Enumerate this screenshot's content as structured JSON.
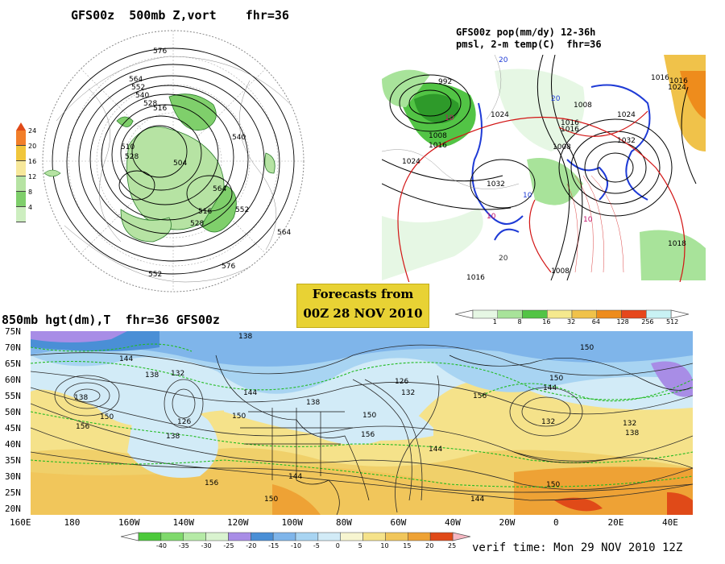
{
  "titles": {
    "vort": "GFS00z  500mb Z,vort    fhr=36",
    "pop_line1": "GFS00z pop(mm/dy) 12-36h",
    "pop_line2": "pmsl, 2-m temp(C)  fhr=36",
    "hgt": "850mb hgt(dm),T  fhr=36 GFS00z",
    "forecasts_line1": "Forecasts from",
    "forecasts_line2": "00Z 28 NOV 2010",
    "verif": "verif time: Mon 29 NOV 2010 12Z"
  },
  "vort_colorbar": {
    "ticks": [
      "24",
      "20",
      "16",
      "12",
      "8",
      "4"
    ],
    "colors": [
      "#f27f2a",
      "#f0c63c",
      "#f7e89a",
      "#b6e3a3",
      "#7fcf6b",
      "#cdeec0"
    ]
  },
  "pop_colorbar": {
    "ticks": [
      "1",
      "8",
      "16",
      "32",
      "64",
      "128",
      "256",
      "512"
    ],
    "colors": [
      "#e6f7e4",
      "#a8e39a",
      "#52c445",
      "#f5e98e",
      "#f0c24a",
      "#ee8c1c",
      "#e6471c",
      "#c9f2f4"
    ]
  },
  "temp_colorbar": {
    "ticks": [
      "-40",
      "-35",
      "-30",
      "-25",
      "-20",
      "-15",
      "-10",
      "-5",
      "0",
      "5",
      "10",
      "15",
      "20",
      "25"
    ],
    "colors": [
      "#4cc93b",
      "#7fd96c",
      "#b5eaa6",
      "#d9f3cf",
      "#a88de6",
      "#4a8fd6",
      "#7fb5ea",
      "#a8d4f2",
      "#d2ebf7",
      "#f7f5d0",
      "#f5e28a",
      "#f1c65b",
      "#eea235",
      "#e04a18"
    ]
  },
  "vort_labels": [
    "576",
    "564",
    "552",
    "540",
    "528",
    "516",
    "510",
    "504",
    "528",
    "540",
    "552",
    "564",
    "576",
    "516",
    "528",
    "564",
    "552"
  ],
  "pop_labels": [
    "1024",
    "1016",
    "1008",
    "992",
    "1024",
    "1016",
    "1008",
    "1032",
    "1024",
    "1016",
    "1016",
    "1008",
    "1016",
    "1024",
    "1032",
    "1018",
    "1008",
    "1016",
    "10",
    "10",
    "10",
    "10",
    "20",
    "20",
    "20"
  ],
  "hgt_labels": [
    "138",
    "144",
    "138",
    "132",
    "150",
    "126",
    "138",
    "156",
    "144",
    "150",
    "138",
    "126",
    "132",
    "150",
    "156",
    "144",
    "150",
    "138",
    "132",
    "144",
    "150",
    "132",
    "138",
    "156",
    "144",
    "150",
    "126",
    "138",
    "144",
    "150",
    "156"
  ],
  "lat_labels": [
    "75N",
    "70N",
    "65N",
    "60N",
    "55N",
    "50N",
    "45N",
    "40N",
    "35N",
    "30N",
    "25N",
    "20N"
  ],
  "lon_labels": [
    "160E",
    "180",
    "160W",
    "140W",
    "120W",
    "100W",
    "80W",
    "60W",
    "40W",
    "20W",
    "0",
    "20E",
    "40E"
  ]
}
